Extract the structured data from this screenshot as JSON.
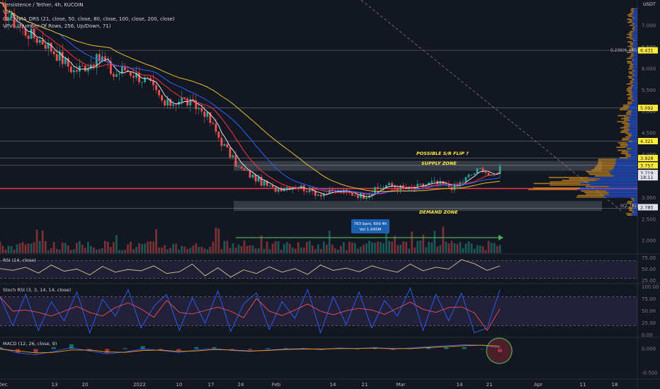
{
  "header": {
    "title": "Persistence / Tether, 4h, KUCOIN",
    "indicators": [
      "Vol",
      "CBC_3MA_DRS (21, close, 50, close, 80, close, 100, close, 200, close)",
      "VPVR (Number Of Rows, 256, Up/Down, 71)"
    ],
    "currency": "USDT"
  },
  "colors": {
    "background": "#131722",
    "up": "#26a69a",
    "down": "#ef5350",
    "ma_fast": "#e0e3eb",
    "ma_red": "#f23645",
    "ma_blue": "#2962ff",
    "ma_yellow": "#e6c229",
    "vpvr_up": "#2962ff",
    "vpvr_down": "#f0a020",
    "rsi_line": "#d8c990",
    "stoch_k": "#2962ff",
    "stoch_d": "#f05050",
    "label_yellow": "#ffeb3b"
  },
  "chart_data": [
    {
      "type": "line",
      "title": "Persistence / Tether, 4h, KUCOIN",
      "x_ticks": [
        "Dec",
        "13",
        "20",
        "2022",
        "10",
        "17",
        "24",
        "Feb",
        "14",
        "21",
        "Mar",
        "14",
        "21",
        "Apr",
        "11",
        "18"
      ],
      "y_ticks": [
        2.0,
        2.5,
        3.0,
        3.5,
        4.0,
        4.5,
        5.0,
        5.5,
        6.0,
        6.5,
        7.0
      ],
      "ylim": [
        1.7,
        7.6
      ],
      "price_labels": [
        "6.431",
        "5.092",
        "4.321",
        "3.928",
        "3.757",
        "3.719",
        "18:11",
        "2.785"
      ],
      "fib_labels": [
        "0.236(6.445)",
        "0(2.761)"
      ],
      "annotations": [
        "POSSIBLE S/R FLIP ?",
        "SUPPLY ZONE",
        "DEMAND ZONE"
      ],
      "range_box": [
        "763 bars, 60d 4h",
        "Vol 1.045M"
      ],
      "supply_zone": [
        3.63,
        3.86
      ],
      "demand_zone": [
        2.7,
        2.93
      ],
      "support_line": 3.22,
      "horizontal_levels": [
        6.431,
        5.092,
        4.321,
        3.928,
        3.757
      ],
      "price_path": [
        [
          0,
          7.4
        ],
        [
          8,
          6.9
        ],
        [
          16,
          6.6
        ],
        [
          26,
          5.95
        ],
        [
          36,
          6.25
        ],
        [
          40,
          5.85
        ],
        [
          44,
          6.0
        ],
        [
          52,
          5.7
        ],
        [
          58,
          5.15
        ],
        [
          64,
          5.3
        ],
        [
          72,
          5.0
        ],
        [
          78,
          4.3
        ],
        [
          84,
          3.7
        ],
        [
          90,
          3.45
        ],
        [
          96,
          3.2
        ],
        [
          104,
          3.3
        ],
        [
          112,
          3.1
        ],
        [
          120,
          3.15
        ],
        [
          128,
          3.05
        ],
        [
          136,
          3.3
        ],
        [
          144,
          3.2
        ],
        [
          152,
          3.35
        ],
        [
          160,
          3.25
        ],
        [
          166,
          3.55
        ],
        [
          170,
          3.7
        ],
        [
          173,
          3.45
        ],
        [
          176,
          3.719
        ]
      ]
    },
    {
      "type": "line",
      "title": "RSI (14, close)",
      "y_ticks": [
        75.0,
        50.0,
        25.0
      ],
      "ylim": [
        20,
        80
      ],
      "band": [
        30,
        70
      ],
      "values": [
        52,
        48,
        55,
        42,
        60,
        46,
        51,
        38,
        57,
        44,
        50,
        47,
        58,
        41,
        45,
        62,
        36,
        54,
        33,
        49,
        41,
        56,
        44,
        52,
        39,
        60,
        48,
        53,
        45,
        58,
        50,
        44,
        62,
        47,
        55,
        51,
        72,
        63,
        48,
        58
      ]
    },
    {
      "type": "line",
      "title": "Stoch RSI (3, 3, 14, 14, close)",
      "y_ticks": [
        100.0,
        75.0,
        50.0,
        25.0,
        0.0
      ],
      "ylim": [
        0,
        100
      ],
      "band": [
        20,
        80
      ],
      "values": [
        80,
        20,
        85,
        10,
        70,
        30,
        90,
        5,
        75,
        40,
        95,
        15,
        60,
        85,
        10,
        78,
        25,
        92,
        8,
        65,
        88,
        12,
        70,
        35,
        95,
        5,
        80,
        22,
        90,
        15,
        72,
        40,
        98,
        10,
        85,
        30,
        88,
        5,
        15,
        95
      ]
    },
    {
      "type": "line",
      "title": "MACD (12, 26, close, 9)",
      "y_ticks": [
        0.0,
        -0.5
      ],
      "ylim": [
        -0.6,
        0.2
      ],
      "macd": [
        0.02,
        -0.08,
        -0.12,
        -0.05,
        0.03,
        -0.04,
        -0.1,
        -0.06,
        0.0,
        -0.03,
        -0.07,
        -0.02,
        0.01,
        -0.03,
        -0.05,
        -0.02,
        0.0,
        0.01,
        -0.01,
        0.02,
        0.01,
        0.03,
        0.0,
        0.02,
        0.05,
        0.07,
        0.09,
        0.08,
        0.03
      ],
      "signal": [
        0.0,
        -0.04,
        -0.08,
        -0.07,
        -0.02,
        -0.02,
        -0.06,
        -0.07,
        -0.03,
        -0.02,
        -0.05,
        -0.04,
        -0.01,
        -0.02,
        -0.04,
        -0.03,
        -0.01,
        0.0,
        0.0,
        0.01,
        0.01,
        0.02,
        0.01,
        0.01,
        0.03,
        0.05,
        0.07,
        0.08,
        0.06
      ]
    }
  ]
}
